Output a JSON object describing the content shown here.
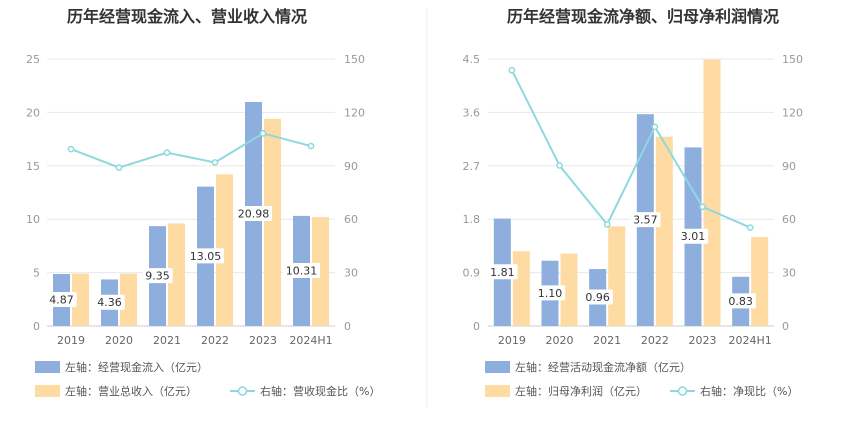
{
  "colors": {
    "bar_primary": "#8eaedd",
    "bar_secondary": "#fddba3",
    "line": "#8dd9df",
    "grid": "#e8e8e8",
    "divider": "#ececec"
  },
  "chart_data": [
    {
      "type": "bar",
      "title": "历年经营现金流入、营业收入情况",
      "categories": [
        "2019",
        "2020",
        "2021",
        "2022",
        "2023",
        "2024H1"
      ],
      "left_ticks": [
        "0",
        "5",
        "10",
        "15",
        "20",
        "25"
      ],
      "right_ticks": [
        "0",
        "30",
        "60",
        "90",
        "120",
        "150"
      ],
      "ylim_left": [
        0,
        25
      ],
      "ylim_right": [
        0,
        150
      ],
      "series": [
        {
          "name": "左轴：经营现金流入（亿元）",
          "axis": "left",
          "kind": "bar",
          "values": [
            4.87,
            4.36,
            9.35,
            13.05,
            20.98,
            10.31
          ],
          "labels": [
            "4.87",
            "4.36",
            "9.35",
            "13.05",
            "20.98",
            "10.31"
          ]
        },
        {
          "name": "左轴：营业总收入（亿元）",
          "axis": "left",
          "kind": "bar",
          "values": [
            4.9,
            4.9,
            9.6,
            14.2,
            19.4,
            10.2
          ]
        },
        {
          "name": "右轴：营收现金比（%）",
          "axis": "right",
          "kind": "line",
          "values": [
            99.4,
            89.0,
            97.4,
            91.9,
            108.2,
            101.1
          ]
        }
      ]
    },
    {
      "type": "bar",
      "title": "历年经营现金流净额、归母净利润情况",
      "categories": [
        "2019",
        "2020",
        "2021",
        "2022",
        "2023",
        "2024H1"
      ],
      "left_ticks": [
        "0",
        "0.9",
        "1.8",
        "2.7",
        "3.6",
        "4.5"
      ],
      "right_ticks": [
        "0",
        "30",
        "60",
        "90",
        "120",
        "150"
      ],
      "ylim_left": [
        0,
        4.5
      ],
      "ylim_right": [
        0,
        150
      ],
      "series": [
        {
          "name": "左轴：经营活动现金流净额（亿元）",
          "axis": "left",
          "kind": "bar",
          "values": [
            1.81,
            1.1,
            0.96,
            3.57,
            3.01,
            0.83
          ],
          "labels": [
            "1.81",
            "1.10",
            "0.96",
            "3.57",
            "3.01",
            "0.83"
          ]
        },
        {
          "name": "左轴：归母净利润（亿元）",
          "axis": "left",
          "kind": "bar",
          "values": [
            1.26,
            1.22,
            1.68,
            3.19,
            4.49,
            1.5
          ]
        },
        {
          "name": "右轴：净现比（%）",
          "axis": "right",
          "kind": "line",
          "values": [
            143.7,
            90.2,
            57.1,
            111.9,
            67.0,
            55.3
          ]
        }
      ]
    }
  ]
}
